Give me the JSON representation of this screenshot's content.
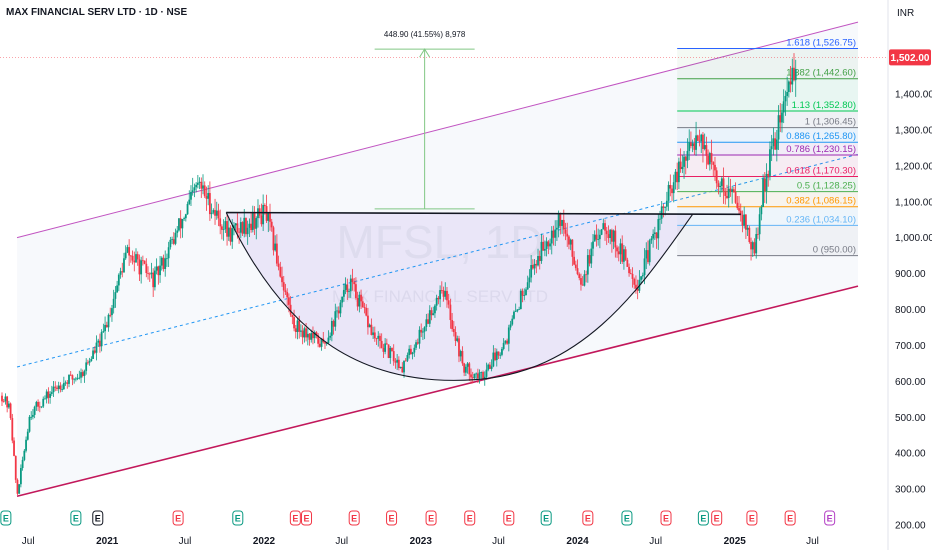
{
  "header": {
    "title": "MAX FINANCIAL SERV LTD · 1D · NSE",
    "currency": "INR"
  },
  "watermark": {
    "symbol": "MFSL, 1D",
    "name": "MAX FINANCIAL SERV LTD"
  },
  "colors": {
    "up_candle": "#089981",
    "down_candle": "#f23645",
    "channel": "#c154c1",
    "channel_lower": "#c2185b",
    "price_badge": "#f23645",
    "measure": "#81c784"
  },
  "chart_data": {
    "type": "candlestick",
    "title": "MAX FINANCIAL SERV LTD · 1D · NSE",
    "y_axis": {
      "unit": "INR",
      "range": [
        200,
        1650
      ],
      "ticks": [
        200,
        300,
        400,
        500,
        600,
        700,
        800,
        900,
        1000,
        1100,
        1200,
        1300,
        1400
      ],
      "tick_labels": [
        "200.00",
        "300.00",
        "400.00",
        "500.00",
        "600.00",
        "700.00",
        "800.00",
        "900.00",
        "1,000.00",
        "1,100.00",
        "1,200.00",
        "1,300.00",
        "1,400.00"
      ],
      "scale": "linear"
    },
    "x_axis": {
      "range": [
        "2020-05-01",
        "2025-10-15"
      ],
      "ticks": [
        {
          "label": "Jul",
          "date": "2020-07-01",
          "bold": false
        },
        {
          "label": "2021",
          "date": "2021-01-01",
          "bold": true
        },
        {
          "label": "Jul",
          "date": "2021-07-01",
          "bold": false
        },
        {
          "label": "2022",
          "date": "2022-01-01",
          "bold": true
        },
        {
          "label": "Jul",
          "date": "2022-07-01",
          "bold": false
        },
        {
          "label": "2023",
          "date": "2023-01-01",
          "bold": true
        },
        {
          "label": "Jul",
          "date": "2023-07-01",
          "bold": false
        },
        {
          "label": "2024",
          "date": "2024-01-01",
          "bold": true
        },
        {
          "label": "Jul",
          "date": "2024-07-01",
          "bold": false
        },
        {
          "label": "2025",
          "date": "2025-01-01",
          "bold": true
        },
        {
          "label": "Jul",
          "date": "2025-07-01",
          "bold": false
        }
      ]
    },
    "last_price": 1502.0,
    "last_price_label": "1,502.00",
    "price_path": [
      [
        "2020-05-01",
        560
      ],
      [
        "2020-05-20",
        520
      ],
      [
        "2020-06-05",
        280
      ],
      [
        "2020-07-05",
        510
      ],
      [
        "2020-09-10",
        590
      ],
      [
        "2020-11-01",
        620
      ],
      [
        "2020-12-20",
        720
      ],
      [
        "2021-02-15",
        960
      ],
      [
        "2021-04-20",
        880
      ],
      [
        "2021-06-10",
        1010
      ],
      [
        "2021-08-01",
        1150
      ],
      [
        "2021-10-10",
        1010
      ],
      [
        "2022-01-05",
        1070
      ],
      [
        "2022-03-10",
        760
      ],
      [
        "2022-05-20",
        700
      ],
      [
        "2022-07-20",
        880
      ],
      [
        "2022-09-15",
        720
      ],
      [
        "2022-11-20",
        640
      ],
      [
        "2023-01-20",
        780
      ],
      [
        "2023-02-20",
        870
      ],
      [
        "2023-04-10",
        640
      ],
      [
        "2023-05-20",
        610
      ],
      [
        "2023-07-20",
        720
      ],
      [
        "2023-09-10",
        900
      ],
      [
        "2023-11-20",
        1060
      ],
      [
        "2024-01-10",
        880
      ],
      [
        "2024-03-01",
        1050
      ],
      [
        "2024-05-20",
        870
      ],
      [
        "2024-07-25",
        1100
      ],
      [
        "2024-09-01",
        1200
      ],
      [
        "2024-10-10",
        1300
      ],
      [
        "2024-11-15",
        1170
      ],
      [
        "2025-01-10",
        1100
      ],
      [
        "2025-02-15",
        950
      ],
      [
        "2025-03-10",
        1150
      ],
      [
        "2025-04-10",
        1300
      ],
      [
        "2025-05-25",
        1502
      ]
    ],
    "channel": {
      "upper": [
        [
          "2020-06-05",
          1000
        ],
        [
          "2025-10-15",
          1600
        ]
      ],
      "lower": [
        [
          "2020-06-05",
          280
        ],
        [
          "2025-10-15",
          865
        ]
      ],
      "middle": [
        [
          "2020-06-05",
          640
        ],
        [
          "2025-10-15",
          1232
        ]
      ]
    },
    "cup_and_handle": {
      "rim_line": [
        [
          "2021-10-05",
          1070
        ],
        [
          "2025-01-15",
          1065
        ]
      ],
      "cup_start": [
        "2021-10-05",
        1070
      ],
      "cup_bottom": [
        "2023-05-10",
        605
      ],
      "cup_end": [
        "2024-09-25",
        1065
      ]
    },
    "measure": {
      "label": "448.90 (41.55%) 8,978",
      "x": "2023-01-10",
      "from": 1080,
      "to": 1525
    },
    "fibonacci": {
      "start": "2024-08-20",
      "end": "2025-10-15",
      "levels": [
        {
          "ratio": "1.618",
          "value": 1526.75,
          "label": "1.618 (1,526.75)",
          "color": "#2962ff"
        },
        {
          "ratio": "1.382",
          "value": 1442.6,
          "label": "1.382 (1,442.60)",
          "color": "#43a047"
        },
        {
          "ratio": "1.13",
          "value": 1352.8,
          "label": "1.13 (1,352.80)",
          "color": "#00c853"
        },
        {
          "ratio": "1",
          "value": 1306.45,
          "label": "1 (1,306.45)",
          "color": "#787b86"
        },
        {
          "ratio": "0.886",
          "value": 1265.8,
          "label": "0.886 (1,265.80)",
          "color": "#2196f3"
        },
        {
          "ratio": "0.786",
          "value": 1230.15,
          "label": "0.786 (1,230.15)",
          "color": "#9c27b0"
        },
        {
          "ratio": "0.618",
          "value": 1170.3,
          "label": "0.618 (1,170.30)",
          "color": "#e91e63"
        },
        {
          "ratio": "0.5",
          "value": 1128.25,
          "label": "0.5 (1,128.25)",
          "color": "#4caf50"
        },
        {
          "ratio": "0.382",
          "value": 1086.15,
          "label": "0.382 (1,086.15)",
          "color": "#ff9800"
        },
        {
          "ratio": "0.236",
          "value": 1034.1,
          "label": "0.236 (1,034.10)",
          "color": "#64b5f6"
        },
        {
          "ratio": "0",
          "value": 950.0,
          "label": "0 (950.00)",
          "color": "#787b86"
        }
      ]
    },
    "events": [
      {
        "label": "E",
        "date": "2020-05-10",
        "color": "#089981"
      },
      {
        "label": "E",
        "date": "2020-10-20",
        "color": "#089981"
      },
      {
        "label": "E",
        "date": "2020-12-10",
        "color": "#131722"
      },
      {
        "label": "E",
        "date": "2021-06-15",
        "color": "#f23645"
      },
      {
        "label": "E",
        "date": "2021-11-01",
        "color": "#089981"
      },
      {
        "label": "E",
        "date": "2022-03-15",
        "color": "#f23645"
      },
      {
        "label": "E",
        "date": "2022-04-10",
        "color": "#f23645"
      },
      {
        "label": "E",
        "date": "2022-07-30",
        "color": "#f23645"
      },
      {
        "label": "E",
        "date": "2022-10-25",
        "color": "#f23645"
      },
      {
        "label": "E",
        "date": "2023-01-25",
        "color": "#f23645"
      },
      {
        "label": "E",
        "date": "2023-04-25",
        "color": "#f23645"
      },
      {
        "label": "E",
        "date": "2023-07-25",
        "color": "#f23645"
      },
      {
        "label": "E",
        "date": "2023-10-20",
        "color": "#089981"
      },
      {
        "label": "E",
        "date": "2024-01-25",
        "color": "#f23645"
      },
      {
        "label": "E",
        "date": "2024-04-25",
        "color": "#089981"
      },
      {
        "label": "E",
        "date": "2024-07-25",
        "color": "#f23645"
      },
      {
        "label": "E",
        "date": "2024-10-20",
        "color": "#089981"
      },
      {
        "label": "E",
        "date": "2024-11-20",
        "color": "#f23645"
      },
      {
        "label": "E",
        "date": "2025-02-10",
        "color": "#f23645"
      },
      {
        "label": "E",
        "date": "2025-05-10",
        "color": "#f23645"
      },
      {
        "label": "E",
        "date": "2025-08-10",
        "color": "#b33fc4"
      }
    ]
  }
}
